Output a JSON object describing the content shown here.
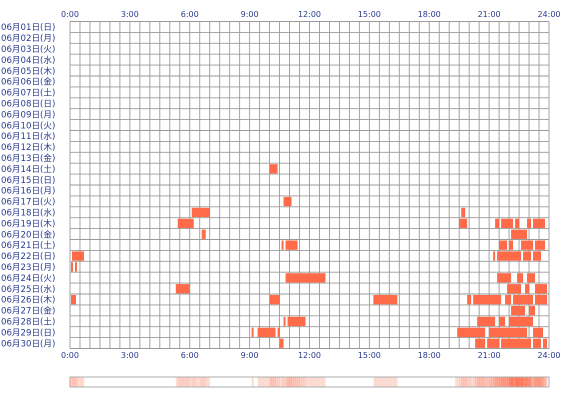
{
  "chart_data": {
    "type": "heatmap",
    "title": "",
    "xlabel": "",
    "ylabel": "",
    "x_range_hours": [
      0,
      24
    ],
    "x_tick_labels": [
      "0:00",
      "3:00",
      "6:00",
      "9:00",
      "12:00",
      "15:00",
      "18:00",
      "21:00",
      "24:00"
    ],
    "grid": true,
    "cell_color": "#ff6a48",
    "summary_strip_color": "#ff6a48",
    "rows": [
      {
        "label": "06月01日(日)",
        "intervals": []
      },
      {
        "label": "06月02日(月)",
        "intervals": []
      },
      {
        "label": "06月03日(火)",
        "intervals": []
      },
      {
        "label": "06月04日(水)",
        "intervals": []
      },
      {
        "label": "06月05日(木)",
        "intervals": []
      },
      {
        "label": "06月06日(金)",
        "intervals": []
      },
      {
        "label": "06月07日(土)",
        "intervals": []
      },
      {
        "label": "06月08日(日)",
        "intervals": []
      },
      {
        "label": "06月09日(月)",
        "intervals": []
      },
      {
        "label": "06月10日(火)",
        "intervals": []
      },
      {
        "label": "06月11日(水)",
        "intervals": []
      },
      {
        "label": "06月12日(木)",
        "intervals": []
      },
      {
        "label": "06月13日(金)",
        "intervals": []
      },
      {
        "label": "06月14日(土)",
        "intervals": [
          [
            10.0,
            10.4
          ]
        ]
      },
      {
        "label": "06月15日(日)",
        "intervals": []
      },
      {
        "label": "06月16日(月)",
        "intervals": []
      },
      {
        "label": "06月17日(火)",
        "intervals": [
          [
            10.7,
            11.1
          ]
        ]
      },
      {
        "label": "06月18日(水)",
        "intervals": [
          [
            6.1,
            7.0
          ],
          [
            19.6,
            19.8
          ]
        ]
      },
      {
        "label": "06月19日(木)",
        "intervals": [
          [
            5.4,
            6.2
          ],
          [
            19.5,
            19.9
          ],
          [
            21.3,
            21.5
          ],
          [
            21.6,
            22.2
          ],
          [
            22.3,
            22.5
          ],
          [
            22.9,
            23.1
          ],
          [
            23.2,
            23.8
          ]
        ]
      },
      {
        "label": "06月20日(金)",
        "intervals": [
          [
            6.6,
            6.8
          ],
          [
            22.1,
            22.9
          ]
        ]
      },
      {
        "label": "06月21日(土)",
        "intervals": [
          [
            10.6,
            10.7
          ],
          [
            10.8,
            11.4
          ],
          [
            21.5,
            21.9
          ],
          [
            22.0,
            22.2
          ],
          [
            22.6,
            23.2
          ],
          [
            23.3,
            23.8
          ]
        ]
      },
      {
        "label": "06月22日(日)",
        "intervals": [
          [
            0.1,
            0.7
          ],
          [
            21.2,
            21.3
          ],
          [
            21.4,
            22.6
          ],
          [
            22.7,
            23.1
          ],
          [
            23.2,
            23.6
          ]
        ]
      },
      {
        "label": "06月23日(月)",
        "intervals": [
          [
            0.05,
            0.15
          ],
          [
            0.25,
            0.35
          ]
        ]
      },
      {
        "label": "06月24日(火)",
        "intervals": [
          [
            10.8,
            12.8
          ],
          [
            21.4,
            22.1
          ],
          [
            22.4,
            22.7
          ],
          [
            22.9,
            23.3
          ]
        ]
      },
      {
        "label": "06月25日(水)",
        "intervals": [
          [
            5.3,
            6.0
          ],
          [
            21.9,
            22.6
          ],
          [
            22.8,
            23.0
          ],
          [
            23.3,
            23.9
          ]
        ]
      },
      {
        "label": "06月26日(木)",
        "intervals": [
          [
            0.05,
            0.3
          ],
          [
            10.0,
            10.5
          ],
          [
            15.2,
            16.4
          ],
          [
            19.9,
            20.1
          ],
          [
            20.2,
            21.6
          ],
          [
            21.8,
            22.1
          ],
          [
            22.2,
            23.2
          ],
          [
            23.3,
            23.9
          ]
        ]
      },
      {
        "label": "06月27日(金)",
        "intervals": [
          [
            22.1,
            22.8
          ],
          [
            23.0,
            23.3
          ]
        ]
      },
      {
        "label": "06月28日(土)",
        "intervals": [
          [
            10.7,
            10.8
          ],
          [
            10.9,
            11.8
          ],
          [
            20.4,
            21.3
          ],
          [
            21.5,
            21.8
          ],
          [
            22.0,
            23.2
          ]
        ]
      },
      {
        "label": "06月29日(日)",
        "intervals": [
          [
            9.1,
            9.2
          ],
          [
            9.4,
            10.3
          ],
          [
            10.4,
            10.5
          ],
          [
            19.4,
            20.8
          ],
          [
            21.0,
            22.9
          ],
          [
            23.2,
            23.7
          ]
        ]
      },
      {
        "label": "06月30日(月)",
        "intervals": [
          [
            10.5,
            10.7
          ],
          [
            20.3,
            20.8
          ],
          [
            20.9,
            21.5
          ],
          [
            21.6,
            23.1
          ],
          [
            23.2,
            23.6
          ],
          [
            23.7,
            23.9
          ]
        ]
      }
    ]
  }
}
